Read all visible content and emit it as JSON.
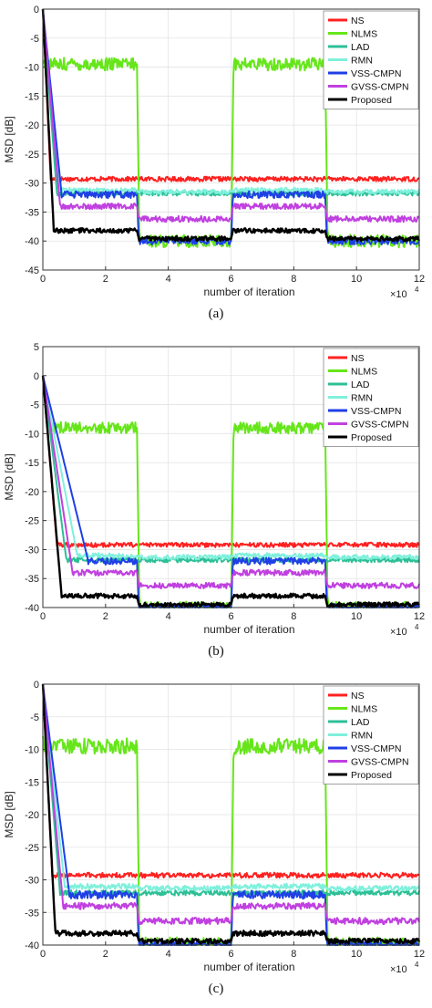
{
  "colors": {
    "NS": "#ff2020",
    "NLMS": "#66e61a",
    "LAD": "#2dbf96",
    "RMN": "#7ff0dc",
    "VSS-CMPN": "#1f3fe6",
    "GVSS-CMPN": "#c040e0",
    "Proposed": "#000000"
  },
  "chart_data": [
    {
      "type": "line",
      "caption": "(a)",
      "xlabel": "number of iteration",
      "ylabel": "MSD [dB]",
      "x_exponent_label": "×10",
      "x_exponent_power": "4",
      "xlim": [
        0,
        12
      ],
      "ylim": [
        -45,
        0
      ],
      "xticks": [
        0,
        2,
        4,
        6,
        8,
        10,
        12
      ],
      "yticks": [
        -45,
        -40,
        -35,
        -30,
        -25,
        -20,
        -15,
        -10,
        -5,
        0
      ],
      "grid": true,
      "legend_position": "top-right",
      "series": [
        {
          "name": "NS",
          "initial": 0,
          "decay": 0.25,
          "levels": [
            -29.3,
            -29.3,
            -29.3,
            -29.3
          ],
          "noise": 0.4
        },
        {
          "name": "NLMS",
          "initial": -9,
          "decay": 0.05,
          "levels": [
            -9.5,
            -40,
            -9.5,
            -40
          ],
          "noise": 1.1
        },
        {
          "name": "LAD",
          "initial": 0,
          "decay": 0.45,
          "levels": [
            -31.8,
            -31.8,
            -31.8,
            -31.8
          ],
          "noise": 0.4
        },
        {
          "name": "RMN",
          "initial": 0,
          "decay": 0.55,
          "levels": [
            -31.2,
            -31.5,
            -31.2,
            -31.5
          ],
          "noise": 0.4
        },
        {
          "name": "VSS-CMPN",
          "initial": 0,
          "decay": 0.6,
          "levels": [
            -32,
            -40,
            -32,
            -40
          ],
          "noise": 0.6
        },
        {
          "name": "GVSS-CMPN",
          "initial": 0,
          "decay": 0.55,
          "levels": [
            -34,
            -36.2,
            -34,
            -36.2
          ],
          "noise": 0.5
        },
        {
          "name": "Proposed",
          "initial": 0,
          "decay": 0.35,
          "levels": [
            -38.2,
            -39.6,
            -38.2,
            -39.6
          ],
          "noise": 0.4
        }
      ]
    },
    {
      "type": "line",
      "caption": "(b)",
      "xlabel": "number of iteration",
      "ylabel": "MSD [dB]",
      "x_exponent_label": "×10",
      "x_exponent_power": "4",
      "xlim": [
        0,
        12
      ],
      "ylim": [
        -40,
        5
      ],
      "xticks": [
        0,
        2,
        4,
        6,
        8,
        10,
        12
      ],
      "yticks": [
        -40,
        -35,
        -30,
        -25,
        -20,
        -15,
        -10,
        -5,
        0,
        5
      ],
      "grid": true,
      "legend_position": "top-right",
      "series": [
        {
          "name": "NS",
          "initial": 0,
          "decay": 0.45,
          "levels": [
            -29.2,
            -29.2,
            -29.2,
            -29.2
          ],
          "noise": 0.4
        },
        {
          "name": "NLMS",
          "initial": 0,
          "decay": 0.25,
          "levels": [
            -9,
            -40,
            -9,
            -40
          ],
          "noise": 1.0
        },
        {
          "name": "LAD",
          "initial": 0,
          "decay": 0.75,
          "levels": [
            -31.8,
            -31.8,
            -31.8,
            -31.8
          ],
          "noise": 0.4
        },
        {
          "name": "RMN",
          "initial": 0,
          "decay": 1.1,
          "levels": [
            -31,
            -31.3,
            -31,
            -31.3
          ],
          "noise": 0.4
        },
        {
          "name": "VSS-CMPN",
          "initial": 0,
          "decay": 1.45,
          "levels": [
            -32,
            -40,
            -32,
            -40
          ],
          "noise": 0.6
        },
        {
          "name": "GVSS-CMPN",
          "initial": 0,
          "decay": 0.95,
          "levels": [
            -34,
            -36.2,
            -34,
            -36.2
          ],
          "noise": 0.5
        },
        {
          "name": "Proposed",
          "initial": 0,
          "decay": 0.6,
          "levels": [
            -38,
            -39.5,
            -38,
            -39.5
          ],
          "noise": 0.4
        }
      ]
    },
    {
      "type": "line",
      "caption": "(c)",
      "xlabel": "number of iteration",
      "ylabel": "MSD [dB]",
      "x_exponent_label": "×10",
      "x_exponent_power": "4",
      "xlim": [
        0,
        12
      ],
      "ylim": [
        -40,
        0
      ],
      "xticks": [
        0,
        2,
        4,
        6,
        8,
        10,
        12
      ],
      "yticks": [
        -40,
        -35,
        -30,
        -25,
        -20,
        -15,
        -10,
        -5,
        0
      ],
      "grid": true,
      "legend_position": "top-right",
      "series": [
        {
          "name": "NS",
          "initial": 0,
          "decay": 0.3,
          "levels": [
            -29.3,
            -29.3,
            -29.3,
            -29.3
          ],
          "noise": 0.4
        },
        {
          "name": "NLMS",
          "initial": -8,
          "decay": 0.05,
          "levels": [
            -9.5,
            -40,
            -9.5,
            -40
          ],
          "noise": 1.2
        },
        {
          "name": "LAD",
          "initial": 0,
          "decay": 0.55,
          "levels": [
            -32,
            -32,
            -32,
            -32
          ],
          "noise": 0.4
        },
        {
          "name": "RMN",
          "initial": 0,
          "decay": 0.7,
          "levels": [
            -31,
            -31.3,
            -31,
            -31.3
          ],
          "noise": 0.4
        },
        {
          "name": "VSS-CMPN",
          "initial": 0,
          "decay": 0.85,
          "levels": [
            -32.3,
            -40,
            -32.3,
            -40
          ],
          "noise": 0.6
        },
        {
          "name": "GVSS-CMPN",
          "initial": 0,
          "decay": 0.65,
          "levels": [
            -34,
            -36.3,
            -34,
            -36.3
          ],
          "noise": 0.5
        },
        {
          "name": "Proposed",
          "initial": 0,
          "decay": 0.4,
          "levels": [
            -38.2,
            -39.4,
            -38.2,
            -39.4
          ],
          "noise": 0.4
        }
      ]
    }
  ]
}
